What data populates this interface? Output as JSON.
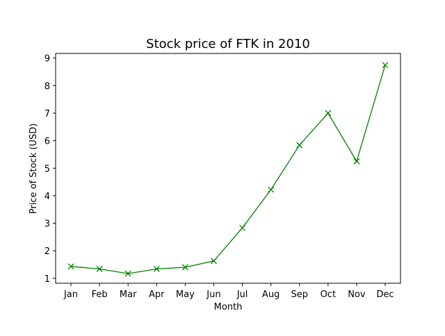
{
  "chart_data": {
    "type": "line",
    "title": "Stock price of FTK in 2010",
    "xlabel": "Month",
    "ylabel": "Price of Stock (USD)",
    "categories": [
      "Jan",
      "Feb",
      "Mar",
      "Apr",
      "May",
      "Jun",
      "Jul",
      "Aug",
      "Sep",
      "Oct",
      "Nov",
      "Dec"
    ],
    "values": [
      1.43,
      1.34,
      1.17,
      1.34,
      1.4,
      1.63,
      2.83,
      4.22,
      5.84,
      7.0,
      5.25,
      8.75
    ],
    "ylim": [
      0.82,
      9.17
    ],
    "yticks": [
      1,
      2,
      3,
      4,
      5,
      6,
      7,
      8,
      9
    ],
    "grid": false,
    "legend": "none",
    "marker": "x",
    "line_color": "#008000"
  }
}
